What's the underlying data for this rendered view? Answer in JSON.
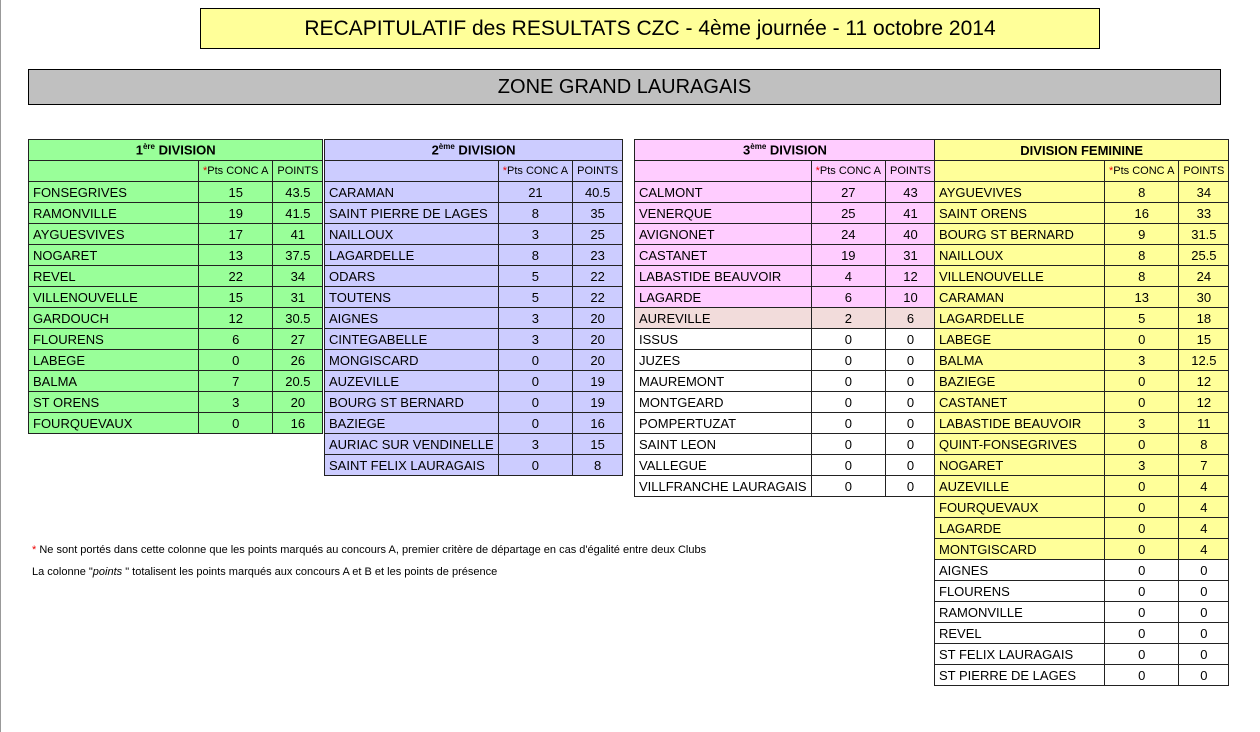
{
  "title": "RECAPITULATIF des RESULTATS CZC - 4ème journée - 11 octobre 2014",
  "zone": "ZONE GRAND LAURAGAIS",
  "col_headers": {
    "star": "*",
    "conc": "Pts CONC A",
    "points": "POINTS"
  },
  "colors": {
    "green": "#99ff99",
    "lavender": "#ccccff",
    "pink": "#ffccff",
    "rose": "#f2dcdb",
    "yellow": "#ffff99",
    "white": "#ffffff"
  },
  "divisions": [
    {
      "num": "1",
      "sup": "ère",
      "label": " DIVISION",
      "color": "#99ff99",
      "rows": [
        [
          "FONSEGRIVES",
          "15",
          "43.5"
        ],
        [
          "RAMONVILLE",
          "19",
          "41.5"
        ],
        [
          "AYGUESVIVES",
          "17",
          "41"
        ],
        [
          "NOGARET",
          "13",
          "37.5"
        ],
        [
          "REVEL",
          "22",
          "34"
        ],
        [
          "VILLENOUVELLE",
          "15",
          "31"
        ],
        [
          "GARDOUCH",
          "12",
          "30.5"
        ],
        [
          "FLOURENS",
          "6",
          "27"
        ],
        [
          "LABEGE",
          "0",
          "26"
        ],
        [
          "BALMA",
          "7",
          "20.5"
        ],
        [
          "ST ORENS",
          "3",
          "20"
        ],
        [
          "FOURQUEVAUX",
          "0",
          "16"
        ]
      ],
      "filled": 12
    },
    {
      "num": "2",
      "sup": "ème",
      "label": " DIVISION",
      "color": "#ccccff",
      "rows": [
        [
          "CARAMAN",
          "21",
          "40.5"
        ],
        [
          "SAINT PIERRE DE LAGES",
          "8",
          "35"
        ],
        [
          "NAILLOUX",
          "3",
          "25"
        ],
        [
          "LAGARDELLE",
          "8",
          "23"
        ],
        [
          "ODARS",
          "5",
          "22"
        ],
        [
          "TOUTENS",
          "5",
          "22"
        ],
        [
          "AIGNES",
          "3",
          "20"
        ],
        [
          "CINTEGABELLE",
          "3",
          "20"
        ],
        [
          "MONGISCARD",
          "0",
          "20"
        ],
        [
          "AUZEVILLE",
          "0",
          "19"
        ],
        [
          "BOURG ST BERNARD",
          "0",
          "19"
        ],
        [
          "BAZIEGE",
          "0",
          "16"
        ],
        [
          "AURIAC SUR VENDINELLE",
          "3",
          "15"
        ],
        [
          "SAINT FELIX LAURAGAIS",
          "0",
          "8"
        ]
      ],
      "filled": 14
    },
    {
      "num": "3",
      "sup": "ème",
      "label": " DIVISION",
      "color": "#ffccff",
      "rows": [
        [
          "CALMONT",
          "27",
          "43"
        ],
        [
          "VENERQUE",
          "25",
          "41"
        ],
        [
          "AVIGNONET",
          "24",
          "40"
        ],
        [
          "CASTANET",
          "19",
          "31"
        ],
        [
          "LABASTIDE  BEAUVOIR",
          "4",
          "12"
        ],
        [
          "LAGARDE",
          "6",
          "10"
        ],
        [
          "AUREVILLE",
          "2",
          "6"
        ],
        [
          "ISSUS",
          "0",
          "0"
        ],
        [
          "JUZES",
          "0",
          "0"
        ],
        [
          "MAUREMONT",
          "0",
          "0"
        ],
        [
          "MONTGEARD",
          "0",
          "0"
        ],
        [
          "POMPERTUZAT",
          "0",
          "0"
        ],
        [
          "SAINT  LEON",
          "0",
          "0"
        ],
        [
          "VALLEGUE",
          "0",
          "0"
        ],
        [
          "VILLFRANCHE LAURAGAIS",
          "0",
          "0"
        ]
      ],
      "filled": 6,
      "extra_fill": {
        "index": 6,
        "color": "#f2dcdb"
      }
    },
    {
      "num": "",
      "sup": "",
      "label": "DIVISION FEMININE",
      "color": "#ffff99",
      "rows": [
        [
          "AYGUEVIVES",
          "8",
          "34"
        ],
        [
          "SAINT ORENS",
          "16",
          "33"
        ],
        [
          "BOURG ST BERNARD",
          "9",
          "31.5"
        ],
        [
          "NAILLOUX",
          "8",
          "25.5"
        ],
        [
          "VILLENOUVELLE",
          "8",
          "24"
        ],
        [
          "CARAMAN",
          "13",
          "30"
        ],
        [
          "LAGARDELLE",
          "5",
          "18"
        ],
        [
          "LABEGE",
          "0",
          "15"
        ],
        [
          "BALMA",
          "3",
          "12.5"
        ],
        [
          "BAZIEGE",
          "0",
          "12"
        ],
        [
          "CASTANET",
          "0",
          "12"
        ],
        [
          "LABASTIDE BEAUVOIR",
          "3",
          "11"
        ],
        [
          "QUINT-FONSEGRIVES",
          "0",
          "8"
        ],
        [
          "NOGARET",
          "3",
          "7"
        ],
        [
          "AUZEVILLE",
          "0",
          "4"
        ],
        [
          "FOURQUEVAUX",
          "0",
          "4"
        ],
        [
          "LAGARDE",
          "0",
          "4"
        ],
        [
          "MONTGISCARD",
          "0",
          "4"
        ],
        [
          "AIGNES",
          "0",
          "0"
        ],
        [
          "FLOURENS",
          "0",
          "0"
        ],
        [
          "RAMONVILLE",
          "0",
          "0"
        ],
        [
          "REVEL",
          "0",
          "0"
        ],
        [
          "ST FELIX LAURAGAIS",
          "0",
          "0"
        ],
        [
          "ST PIERRE DE LAGES",
          "0",
          "0"
        ]
      ],
      "filled": 18
    }
  ],
  "notes": {
    "star": "*",
    "line1": " Ne sont portés dans cette colonne que les points marqués au concours A, premier critère de départage en cas d'égalité entre deux Clubs",
    "line2_pre": "La colonne \"",
    "line2_em": "points",
    "line2_post": " \" totalisent les points marqués aux concours A et B et les points de présence"
  }
}
